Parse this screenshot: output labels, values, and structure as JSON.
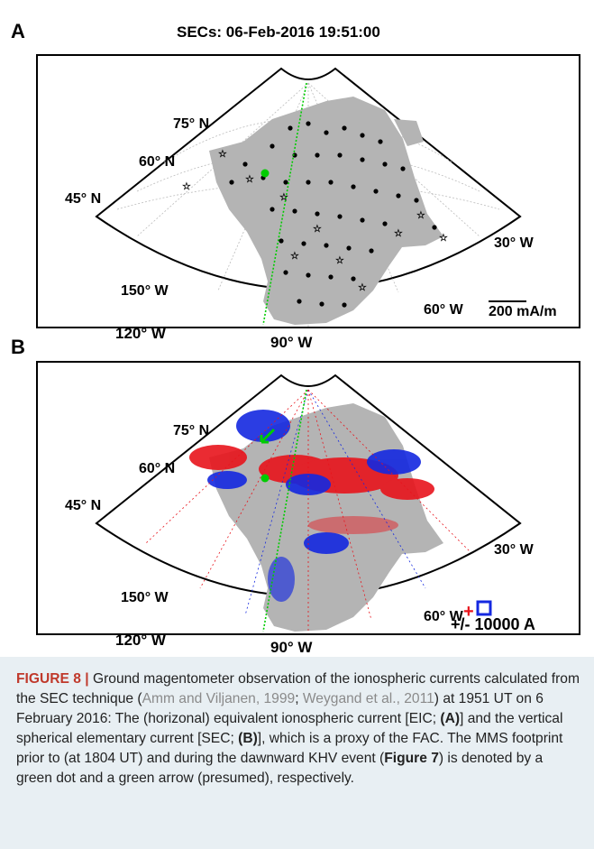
{
  "panel_a": {
    "letter": "A",
    "title": "SECs: 06-Feb-2016 19:51:00",
    "lat_labels": [
      "75° N",
      "60° N",
      "45° N"
    ],
    "lon_labels": [
      "150° W",
      "120° W",
      "90° W",
      "60° W",
      "30° W"
    ],
    "scale_label": "200 mA/m"
  },
  "panel_b": {
    "letter": "B",
    "lat_labels": [
      "75° N",
      "60° N",
      "45° N"
    ],
    "lon_labels": [
      "150° W",
      "120° W",
      "90° W",
      "60° W",
      "30° W"
    ],
    "scale_label": "+/- 10000 A"
  },
  "colors": {
    "land": "#b4b4b4",
    "footprint": "#00cc00",
    "upward": "#e8141c",
    "downward": "#1428e0",
    "caption_bg": "#e8eff3",
    "figure_label": "#c0392b"
  },
  "caption": {
    "figure_label": "FIGURE 8 |",
    "t1": " Ground magentometer observation of the ionospheric currents calculated from the SEC technique (",
    "ref1": "Amm and Viljanen, 1999",
    "t2": "; ",
    "ref2": "Weygand et al., 2011",
    "t3": ") at 1951 UT on 6 February 2016: The (horizonal) equivalent ionospheric current [EIC; ",
    "b1": "(A)",
    "t4": "] and the vertical spherical elementary current [SEC; ",
    "b2": "(B)",
    "t5": "], which is a proxy of the FAC. The MMS footprint prior to (at 1804 UT) and during the dawnward KHV event (",
    "b3": "Figure 7",
    "t6": ") is denoted by a green dot and a green arrow (presumed), respectively."
  }
}
